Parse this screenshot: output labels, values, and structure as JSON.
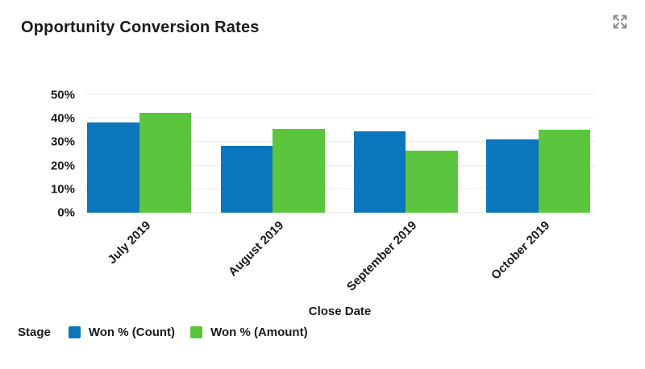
{
  "icons": {
    "expand": "expand-arrows"
  },
  "colors": {
    "background": "#ffffff",
    "title_text": "#1a1a1a",
    "axis_text": "#1a1a1a",
    "gridline": "#ececec",
    "icon_gray": "#8c8c8c",
    "series_blue": "#0b76bc",
    "series_green": "#5bc63d"
  },
  "chart_data": {
    "type": "bar",
    "title": "Opportunity Conversion Rates",
    "categories": [
      "July 2019",
      "August 2019",
      "September 2019",
      "October 2019"
    ],
    "series": [
      {
        "name": "Won % (Count)",
        "color": "#0b76bc",
        "values": [
          38.5,
          28.3,
          34.7,
          31.3
        ]
      },
      {
        "name": "Won % (Amount)",
        "color": "#5bc63d",
        "values": [
          42.6,
          35.5,
          26.3,
          35.4
        ]
      }
    ],
    "xlabel": "Close Date",
    "ylabel": "",
    "ylim": [
      0,
      50
    ],
    "yticks": [
      "0%",
      "10%",
      "20%",
      "30%",
      "40%",
      "50%"
    ],
    "ytick_unit": "%",
    "grid": true,
    "legend_title": "Stage",
    "legend_position": "bottom-left",
    "bar_orientation": "vertical",
    "x_label_rotation_deg": -45
  }
}
